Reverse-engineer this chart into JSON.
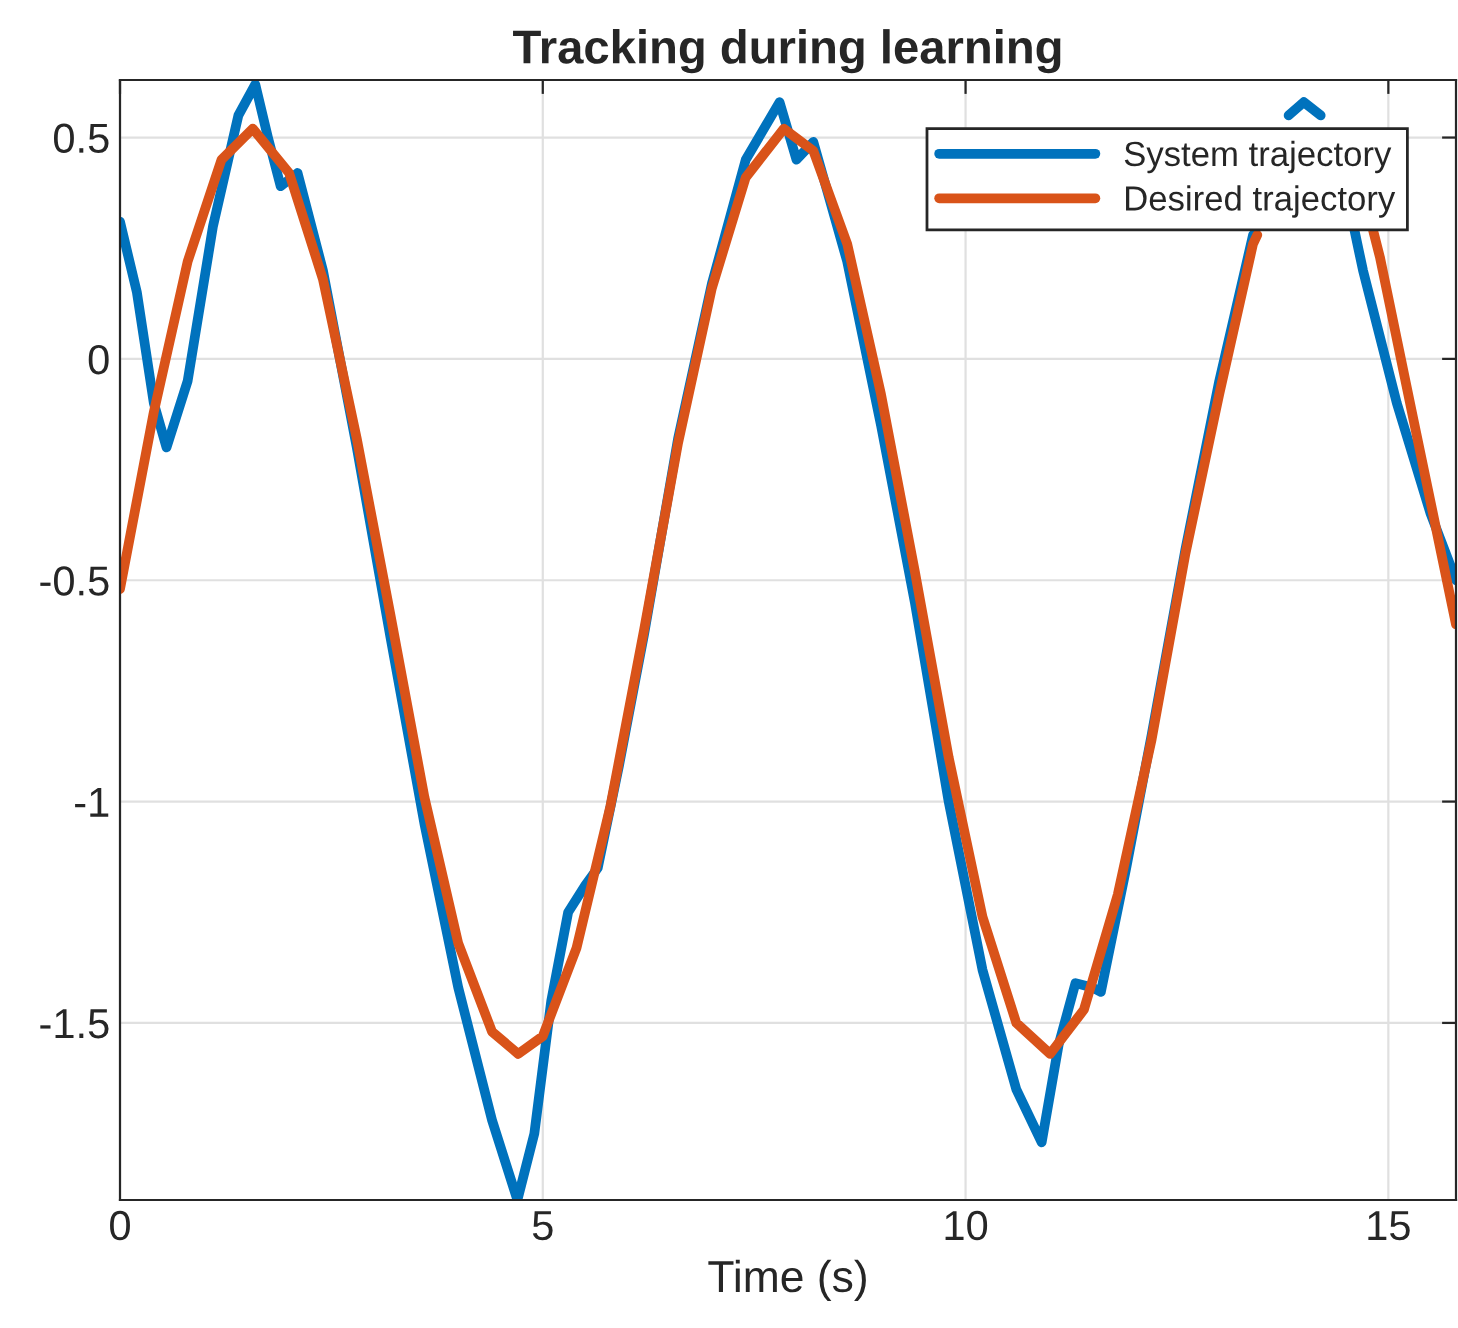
{
  "chart_data": {
    "type": "line",
    "title": "Tracking during learning",
    "xlabel": "Time (s)",
    "xlim": [
      0,
      15.8
    ],
    "ylim": [
      -1.9,
      0.63
    ],
    "xticks": [
      0,
      5,
      10,
      15
    ],
    "yticks": [
      {
        "value": -1.5,
        "label": "-1.5"
      },
      {
        "value": -1,
        "label": "-1"
      },
      {
        "value": -0.5,
        "label": "-0.5"
      },
      0,
      0.5
    ],
    "grid": true,
    "legend": "top right",
    "line_style": "solid",
    "marker": "none",
    "series": [
      {
        "name": "System trajectory",
        "color": "#0072bd",
        "x": [
          0,
          0.2,
          0.4,
          0.55,
          0.8,
          1.1,
          1.4,
          1.6,
          1.75,
          1.9,
          2.1,
          2.4,
          2.8,
          3.2,
          3.6,
          4.0,
          4.4,
          4.7,
          4.9,
          5.1,
          5.3,
          5.5,
          5.65,
          5.9,
          6.2,
          6.6,
          7.0,
          7.4,
          7.8,
          8.0,
          8.2,
          8.6,
          9.0,
          9.4,
          9.8,
          10.2,
          10.6,
          10.9,
          11.1,
          11.3,
          11.5,
          11.6,
          11.9,
          12.2,
          12.6,
          13.0,
          13.4,
          13.7,
          13.82,
          14.0,
          14.2,
          14.3,
          14.6,
          14.7,
          15.1,
          15.5,
          15.8
        ],
        "values": [
          0.31,
          0.15,
          -0.1,
          -0.2,
          -0.05,
          0.3,
          0.55,
          0.62,
          0.5,
          0.39,
          0.42,
          0.2,
          -0.2,
          -0.63,
          -1.05,
          -1.42,
          -1.72,
          -1.9,
          -1.75,
          -1.45,
          -1.25,
          -1.19,
          -1.15,
          -0.92,
          -0.62,
          -0.18,
          0.17,
          0.45,
          0.58,
          0.45,
          0.49,
          0.22,
          -0.15,
          -0.55,
          -1.0,
          -1.38,
          -1.65,
          -1.77,
          -1.55,
          -1.41,
          -1.42,
          -1.43,
          -1.15,
          -0.85,
          -0.43,
          -0.05,
          0.28,
          null,
          0.55,
          0.58,
          0.55,
          null,
          0.29,
          0.2,
          -0.1,
          -0.35,
          -0.5
        ]
      },
      {
        "name": "Desired trajectory",
        "color": "#d95319",
        "x": [
          0,
          0.4,
          0.8,
          1.2,
          1.57,
          2.0,
          2.4,
          2.8,
          3.2,
          3.6,
          4.0,
          4.4,
          4.71,
          5.0,
          5.4,
          5.8,
          6.2,
          6.6,
          7.0,
          7.4,
          7.85,
          8.2,
          8.6,
          9.0,
          9.4,
          9.8,
          10.2,
          10.6,
          11.0,
          11.4,
          11.8,
          12.2,
          12.6,
          13.0,
          13.4,
          13.45,
          13.8,
          14.14,
          14.5,
          14.82,
          14.9,
          15.3,
          15.8
        ],
        "values": [
          -0.52,
          -0.12,
          0.22,
          0.45,
          0.52,
          0.42,
          0.18,
          -0.18,
          -0.58,
          -0.99,
          -1.32,
          -1.52,
          -1.57,
          -1.53,
          -1.33,
          -1.01,
          -0.61,
          -0.19,
          0.16,
          0.41,
          0.52,
          0.47,
          0.26,
          -0.08,
          -0.48,
          -0.9,
          -1.26,
          -1.5,
          -1.57,
          -1.47,
          -1.21,
          -0.86,
          -0.44,
          -0.08,
          0.26,
          0.28,
          null,
          null,
          null,
          0.29,
          0.23,
          -0.14,
          -0.6
        ]
      }
    ]
  }
}
